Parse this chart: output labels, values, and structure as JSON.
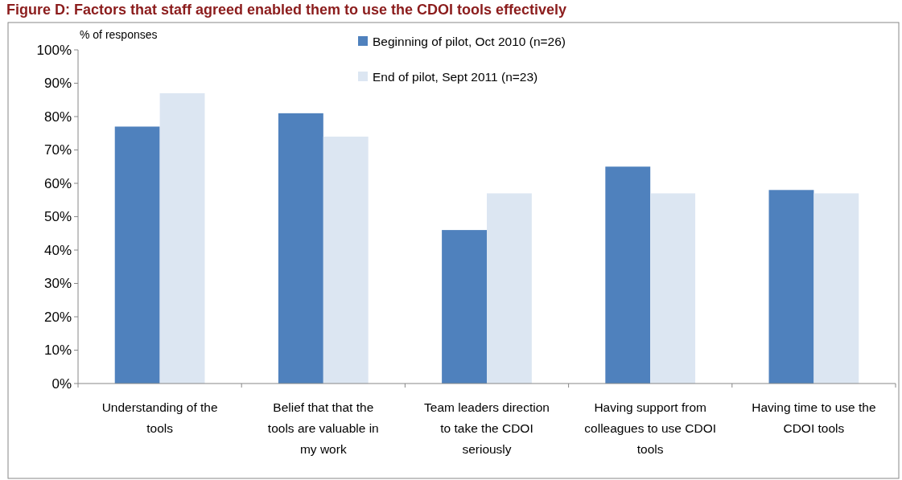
{
  "chart_data": {
    "type": "bar",
    "title": "Figure D: Factors that staff agreed enabled them to use the CDOI tools effectively",
    "ylabel": "% of responses",
    "categories": [
      "Understanding of the tools",
      "Belief that that the tools are valuable in my work",
      "Team leaders direction to take the CDOI seriously",
      "Having support from colleagues to use CDOI tools",
      "Having time to use the CDOI tools"
    ],
    "series": [
      {
        "name": "Beginning of pilot, Oct 2010 (n=26)",
        "color": "#4f81bd",
        "values": [
          77,
          81,
          46,
          65,
          58
        ]
      },
      {
        "name": "End of pilot, Sept 2011 (n=23)",
        "color": "#dce6f2",
        "values": [
          87,
          74,
          57,
          57,
          57
        ]
      }
    ],
    "ylim": [
      0,
      100
    ],
    "yticks": [
      {
        "value": 0,
        "label": "0%"
      },
      {
        "value": 10,
        "label": "10%"
      },
      {
        "value": 20,
        "label": "20%"
      },
      {
        "value": 30,
        "label": "30%"
      },
      {
        "value": 40,
        "label": "40%"
      },
      {
        "value": 50,
        "label": "50%"
      },
      {
        "value": 60,
        "label": "60%"
      },
      {
        "value": 70,
        "label": "70%"
      },
      {
        "value": 80,
        "label": "80%"
      },
      {
        "value": 90,
        "label": "90%"
      },
      {
        "value": 100,
        "label": "100%"
      }
    ],
    "legend": "top",
    "grid": false
  }
}
